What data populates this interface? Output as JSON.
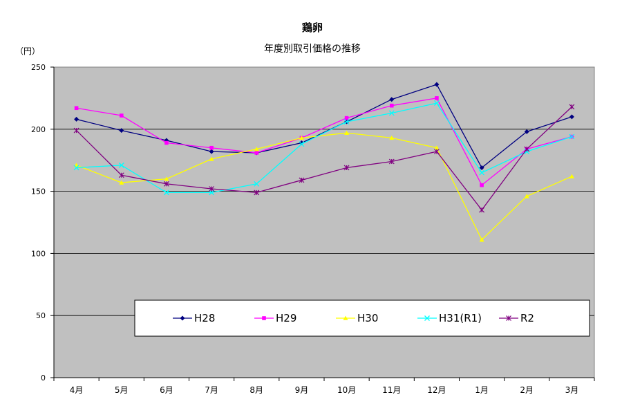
{
  "chart_data": {
    "type": "line",
    "title": "鶏卵",
    "subtitle": "年度別取引価格の推移",
    "ylabel": "（円）",
    "xlabel": "",
    "categories": [
      "4月",
      "5月",
      "6月",
      "7月",
      "8月",
      "9月",
      "10月",
      "11月",
      "12月",
      "1月",
      "2月",
      "3月"
    ],
    "ylim": [
      0,
      250
    ],
    "yticks": [
      0,
      50,
      100,
      150,
      200,
      250
    ],
    "grid": "horizontal",
    "legend_position": "inside-bottom",
    "series": [
      {
        "name": "H28",
        "color": "#000080",
        "marker": "diamond",
        "values": [
          208,
          199,
          191,
          182,
          181,
          189,
          206,
          224,
          236,
          169,
          198,
          210
        ]
      },
      {
        "name": "H29",
        "color": "#ff00ff",
        "marker": "square",
        "values": [
          217,
          211,
          189,
          185,
          181,
          193,
          209,
          219,
          225,
          155,
          184,
          194
        ]
      },
      {
        "name": "H30",
        "color": "#ffff00",
        "marker": "triangle",
        "values": [
          171,
          157,
          160,
          176,
          184,
          193,
          197,
          193,
          185,
          111,
          146,
          162
        ]
      },
      {
        "name": "H31(R1)",
        "color": "#00ffff",
        "marker": "x",
        "values": [
          169,
          171,
          149,
          149,
          156,
          188,
          206,
          213,
          221,
          165,
          182,
          194
        ]
      },
      {
        "name": "R2",
        "color": "#800080",
        "marker": "star",
        "values": [
          199,
          163,
          156,
          152,
          149,
          159,
          169,
          174,
          182,
          135,
          184,
          218
        ]
      }
    ]
  }
}
